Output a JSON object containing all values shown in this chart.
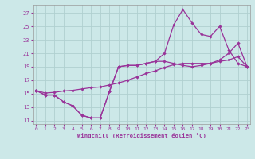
{
  "xlabel": "Windchill (Refroidissement éolien,°C)",
  "bg_color": "#cce8e8",
  "line_color": "#993399",
  "grid_color": "#b0d0d0",
  "x_ticks": [
    0,
    1,
    2,
    3,
    4,
    5,
    6,
    7,
    8,
    9,
    10,
    11,
    12,
    13,
    14,
    15,
    16,
    17,
    18,
    19,
    20,
    21,
    22,
    23
  ],
  "y_ticks": [
    11,
    13,
    15,
    17,
    19,
    21,
    23,
    25,
    27
  ],
  "xlim": [
    -0.3,
    23.3
  ],
  "ylim": [
    10.5,
    28.2
  ],
  "line1_x": [
    0,
    1,
    2,
    3,
    4,
    5,
    6,
    7,
    8,
    9,
    10,
    11,
    12,
    13,
    14,
    15,
    16,
    17,
    18,
    19,
    20,
    21,
    22,
    23
  ],
  "line1_y": [
    15.5,
    14.8,
    14.8,
    13.8,
    13.2,
    11.8,
    11.4,
    11.4,
    15.3,
    19.0,
    19.2,
    19.2,
    19.5,
    19.8,
    21.0,
    25.2,
    27.5,
    25.5,
    23.8,
    23.5,
    25.0,
    21.5,
    19.5,
    19.0
  ],
  "line2_x": [
    0,
    1,
    2,
    3,
    4,
    5,
    6,
    7,
    8,
    9,
    10,
    11,
    12,
    13,
    14,
    15,
    16,
    17,
    18,
    19,
    20,
    21,
    22,
    23
  ],
  "line2_y": [
    15.5,
    14.8,
    14.8,
    13.8,
    13.2,
    11.8,
    11.4,
    11.4,
    15.3,
    19.0,
    19.2,
    19.2,
    19.5,
    19.8,
    19.8,
    19.5,
    19.2,
    19.0,
    19.2,
    19.5,
    20.0,
    21.0,
    22.5,
    19.0
  ],
  "line3_x": [
    0,
    1,
    2,
    3,
    4,
    5,
    6,
    7,
    8,
    9,
    10,
    11,
    12,
    13,
    14,
    15,
    16,
    17,
    18,
    19,
    20,
    21,
    22,
    23
  ],
  "line3_y": [
    15.5,
    15.1,
    15.2,
    15.4,
    15.5,
    15.7,
    15.9,
    16.0,
    16.3,
    16.6,
    17.0,
    17.5,
    18.0,
    18.4,
    18.9,
    19.3,
    19.5,
    19.5,
    19.5,
    19.5,
    19.8,
    20.0,
    20.5,
    19.0
  ]
}
